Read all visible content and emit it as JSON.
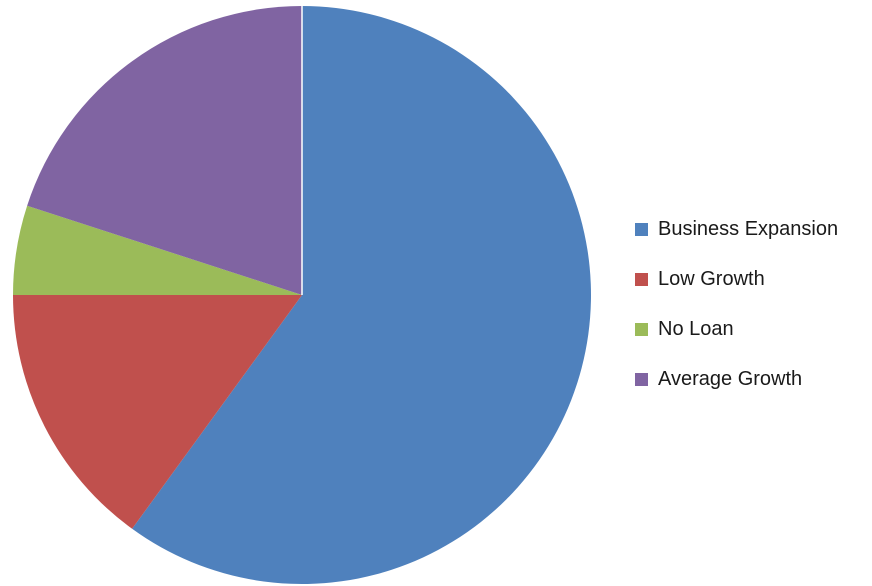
{
  "chart_data": {
    "type": "pie",
    "title": "",
    "categories": [
      "Business Expansion",
      "Low Growth",
      "No Loan",
      "Average Growth"
    ],
    "values": [
      60,
      15,
      5,
      20
    ],
    "colors": [
      "#4F81BD",
      "#C0504D",
      "#9BBB59",
      "#8064A2"
    ],
    "start_angle_deg": 0,
    "direction": "clockwise",
    "legend_position": "right",
    "legend_text_color": "#1a1a1a",
    "background_color": "#ffffff",
    "slice_separator_color": "#ffffff"
  }
}
